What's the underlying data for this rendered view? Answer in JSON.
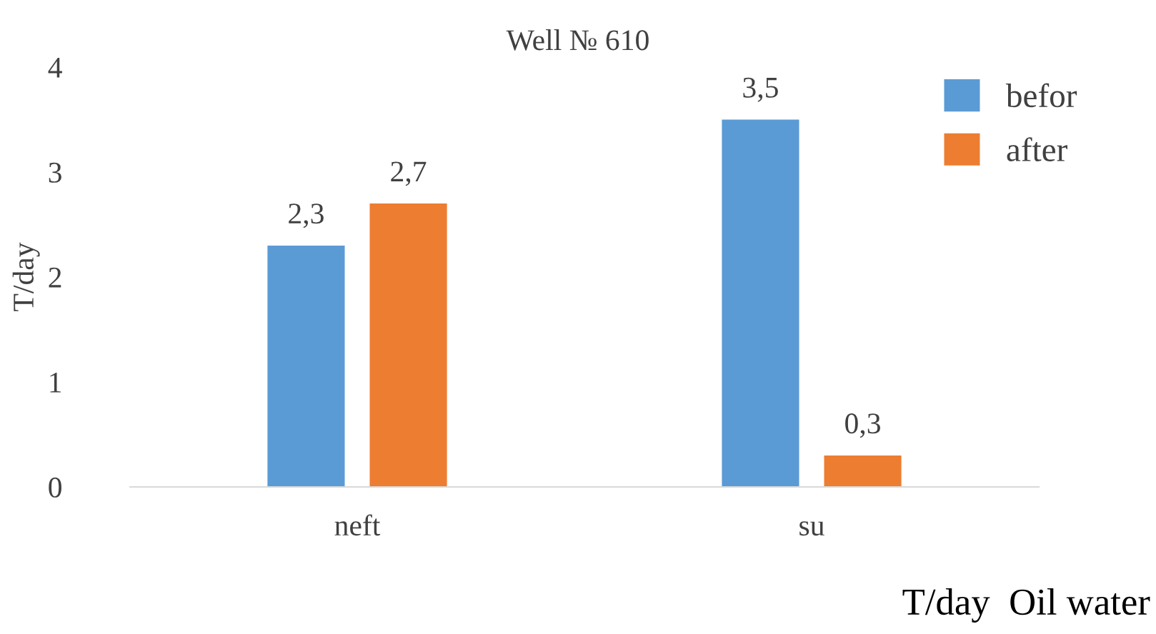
{
  "chart_data": {
    "type": "bar",
    "title": "Well № 610",
    "ylabel": "T/day",
    "categories": [
      "neft",
      "su"
    ],
    "series": [
      {
        "name": "befor",
        "color": "#5b9bd5",
        "values": [
          2.3,
          3.5
        ],
        "value_labels": [
          "2,3",
          "3,5"
        ]
      },
      {
        "name": "after",
        "color": "#ed7d31",
        "values": [
          2.7,
          0.3
        ],
        "value_labels": [
          "2,7",
          "0,3"
        ]
      }
    ],
    "ylim": [
      0,
      4
    ],
    "yticks": [
      0,
      1,
      2,
      3,
      4
    ],
    "grid": false,
    "legend": "top right",
    "annotations": [
      "T/day  Oil water"
    ]
  }
}
